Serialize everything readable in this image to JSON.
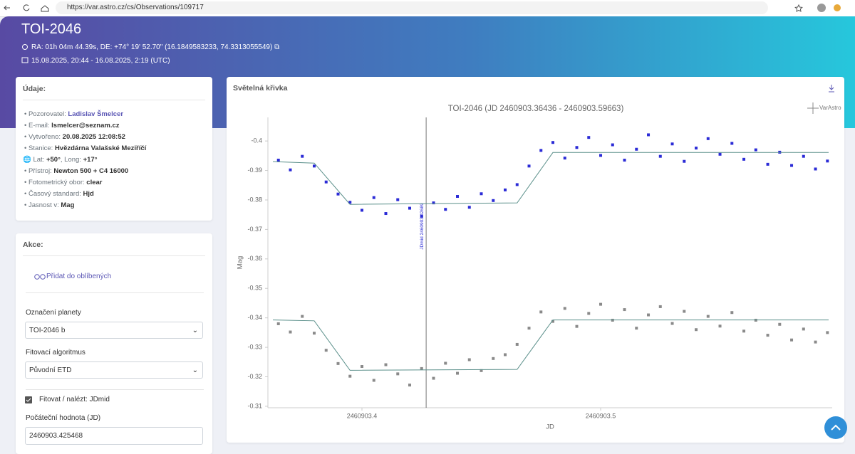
{
  "browser": {
    "url": "https://var.astro.cz/cs/Observations/109717"
  },
  "header": {
    "title": "TOI-2046",
    "coordinates": "RA: 01h 04m 44.39s, DE: +74° 19' 52.70\" (16.1849583233, 74.3313055549)",
    "date": "15.08.2025, 20:44 - 16.08.2025, 2:19 (UTC)"
  },
  "details": {
    "title": "Údaje:",
    "items": [
      {
        "label": "Pozorovatel:",
        "value": "Ladislav Šmelcer",
        "link": true
      },
      {
        "label": "E-mail:",
        "value": "lsmelcer@seznam.cz"
      },
      {
        "label": "Vytvořeno:",
        "value": "20.08.2025 12:08:52"
      },
      {
        "label": "Stanice:",
        "value": "Hvězdárna Valašské Meziříčí"
      },
      {
        "label": "Lat:",
        "value": "+50°",
        "label2": ", Long:",
        "value2": "+17°",
        "globe": true
      },
      {
        "label": "Přístroj:",
        "value": "Newton 500 + C4 16000"
      },
      {
        "label": "Fotometrický obor:",
        "value": "clear"
      },
      {
        "label": "Časový standard:",
        "value": "Hjd"
      },
      {
        "label": "Jasnost v:",
        "value": "Mag"
      }
    ]
  },
  "actions": {
    "title": "Akce:",
    "favorite": "Přidat do oblíbených",
    "planet_label": "Označení planety",
    "planet_value": "TOI-2046 b",
    "algorithm_label": "Fitovací algoritmus",
    "algorithm_value": "Původní ETD",
    "fit_checkbox": "Fitovat / nalézt: JDmid",
    "initial_label": "Počáteční hodnota (JD)",
    "initial_value": "2460903.425468"
  },
  "chart_panel": {
    "title": "Světelná křivka",
    "logo": "VarAstro"
  },
  "chart_data": {
    "type": "scatter",
    "title": "TOI-2046 (JD 2460903.36436 - 2460903.59663)",
    "x_label": "JD",
    "y_label": "Mag",
    "xlim": [
      2460903.3606,
      2460903.597
    ],
    "xticks": [
      2460903.4,
      2460903.5
    ],
    "ylim": [
      -0.408,
      -0.3095
    ],
    "y_inverted": true,
    "yticks": [
      -0.4,
      -0.39,
      -0.38,
      -0.37,
      -0.36,
      -0.35,
      -0.34,
      -0.33,
      -0.32,
      -0.31
    ],
    "grid": false,
    "annotation": {
      "value": 2460903.42689,
      "label": "JDmid 2460903.42689"
    },
    "series": [
      {
        "mode": "markers",
        "color": "#2b2bd6",
        "x": [
          2460903.365,
          2460903.37,
          2460903.375,
          2460903.38,
          2460903.385,
          2460903.39,
          2460903.395,
          2460903.4,
          2460903.405,
          2460903.41,
          2460903.415,
          2460903.42,
          2460903.425,
          2460903.43,
          2460903.435,
          2460903.44,
          2460903.445,
          2460903.45,
          2460903.455,
          2460903.46,
          2460903.465,
          2460903.47,
          2460903.475,
          2460903.48,
          2460903.485,
          2460903.49,
          2460903.495,
          2460903.5,
          2460903.505,
          2460903.51,
          2460903.515,
          2460903.52,
          2460903.525,
          2460903.53,
          2460903.535,
          2460903.54,
          2460903.545,
          2460903.55,
          2460903.555,
          2460903.56,
          2460903.565,
          2460903.57,
          2460903.575,
          2460903.58,
          2460903.585,
          2460903.59,
          2460903.595
        ],
        "values": [
          -0.3935,
          -0.3902,
          -0.3948,
          -0.3915,
          -0.3861,
          -0.382,
          -0.3792,
          -0.3765,
          -0.3808,
          -0.3754,
          -0.3801,
          -0.3772,
          -0.3745,
          -0.379,
          -0.3768,
          -0.3812,
          -0.3775,
          -0.3821,
          -0.3798,
          -0.3834,
          -0.3852,
          -0.3915,
          -0.3968,
          -0.3995,
          -0.3942,
          -0.3978,
          -0.4012,
          -0.3951,
          -0.3987,
          -0.3935,
          -0.3972,
          -0.4021,
          -0.3948,
          -0.399,
          -0.3931,
          -0.3976,
          -0.4008,
          -0.3955,
          -0.3992,
          -0.3938,
          -0.397,
          -0.3921,
          -0.3962,
          -0.3917,
          -0.3948,
          -0.3905,
          -0.3932
        ]
      },
      {
        "mode": "markers",
        "color": "#8a8a8a",
        "x": [
          2460903.365,
          2460903.37,
          2460903.375,
          2460903.38,
          2460903.385,
          2460903.39,
          2460903.395,
          2460903.4,
          2460903.405,
          2460903.41,
          2460903.415,
          2460903.42,
          2460903.425,
          2460903.43,
          2460903.435,
          2460903.44,
          2460903.445,
          2460903.45,
          2460903.455,
          2460903.46,
          2460903.465,
          2460903.47,
          2460903.475,
          2460903.48,
          2460903.485,
          2460903.49,
          2460903.495,
          2460903.5,
          2460903.505,
          2460903.51,
          2460903.515,
          2460903.52,
          2460903.525,
          2460903.53,
          2460903.535,
          2460903.54,
          2460903.545,
          2460903.55,
          2460903.555,
          2460903.56,
          2460903.565,
          2460903.57,
          2460903.575,
          2460903.58,
          2460903.585,
          2460903.59,
          2460903.595
        ],
        "values": [
          -0.338,
          -0.3352,
          -0.3405,
          -0.3348,
          -0.329,
          -0.3245,
          -0.3202,
          -0.3235,
          -0.3188,
          -0.3241,
          -0.321,
          -0.3172,
          -0.3228,
          -0.3195,
          -0.3246,
          -0.3212,
          -0.3258,
          -0.3221,
          -0.3262,
          -0.3275,
          -0.331,
          -0.3365,
          -0.342,
          -0.3388,
          -0.3432,
          -0.3371,
          -0.3415,
          -0.3446,
          -0.3392,
          -0.3428,
          -0.3365,
          -0.341,
          -0.3438,
          -0.3381,
          -0.3422,
          -0.336,
          -0.3405,
          -0.3372,
          -0.3418,
          -0.3355,
          -0.3392,
          -0.3341,
          -0.3378,
          -0.3325,
          -0.3362,
          -0.3318,
          -0.335
        ]
      },
      {
        "mode": "line",
        "color": "#5a8f8a",
        "x": [
          2460903.3627,
          2460903.38,
          2460903.395,
          2460903.465,
          2460903.48,
          2460903.5955
        ],
        "values": [
          -0.393,
          -0.3925,
          -0.3785,
          -0.379,
          -0.3961,
          -0.3961
        ]
      },
      {
        "mode": "line",
        "color": "#5a8f8a",
        "x": [
          2460903.3627,
          2460903.38,
          2460903.395,
          2460903.465,
          2460903.48,
          2460903.5955
        ],
        "values": [
          -0.3393,
          -0.339,
          -0.3222,
          -0.3225,
          -0.3393,
          -0.3393
        ]
      }
    ]
  }
}
